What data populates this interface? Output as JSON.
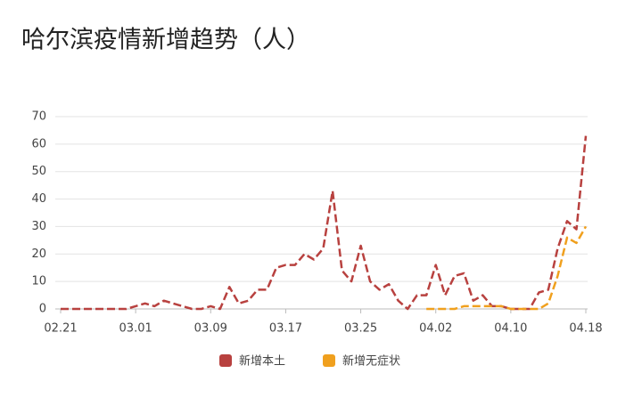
{
  "chart_data": {
    "type": "line",
    "title": "哈尔滨疫情新增趋势（人）",
    "categories": [
      "02.21",
      null,
      null,
      null,
      null,
      null,
      null,
      null,
      "03.01",
      null,
      null,
      null,
      null,
      null,
      null,
      null,
      "03.09",
      null,
      null,
      null,
      null,
      null,
      null,
      null,
      "03.17",
      null,
      null,
      null,
      null,
      null,
      null,
      null,
      "03.25",
      null,
      null,
      null,
      null,
      null,
      null,
      null,
      "04.02",
      null,
      null,
      null,
      null,
      null,
      null,
      null,
      "04.10",
      null,
      null,
      null,
      null,
      null,
      null,
      null,
      "04.18"
    ],
    "series": [
      {
        "name": "新增本土",
        "color": "#b8413f",
        "values": [
          0,
          0,
          0,
          0,
          0,
          0,
          0,
          0,
          1,
          2,
          1,
          3,
          2,
          1,
          0,
          0,
          1,
          0,
          8,
          2,
          3,
          7,
          7,
          15,
          16,
          16,
          20,
          18,
          22,
          43,
          14,
          10,
          23,
          10,
          7,
          9,
          3,
          0,
          5,
          5,
          16,
          5,
          12,
          13,
          3,
          5,
          1,
          1,
          0,
          0,
          0,
          6,
          7,
          22,
          32,
          29,
          63
        ]
      },
      {
        "name": "新增无症状",
        "color": "#f0a01e",
        "values": [
          null,
          null,
          null,
          null,
          null,
          null,
          null,
          null,
          null,
          null,
          null,
          null,
          null,
          null,
          null,
          null,
          null,
          null,
          null,
          null,
          null,
          null,
          null,
          null,
          null,
          null,
          null,
          null,
          null,
          null,
          null,
          null,
          null,
          null,
          null,
          null,
          null,
          null,
          null,
          0,
          0,
          0,
          0,
          1,
          1,
          1,
          1,
          1,
          0,
          0,
          0,
          0,
          2,
          12,
          26,
          24,
          30
        ]
      }
    ],
    "ylim": [
      0,
      70
    ],
    "yticks": [
      0,
      10,
      20,
      30,
      40,
      50,
      60,
      70
    ],
    "grid": true,
    "legend": "bottom"
  }
}
